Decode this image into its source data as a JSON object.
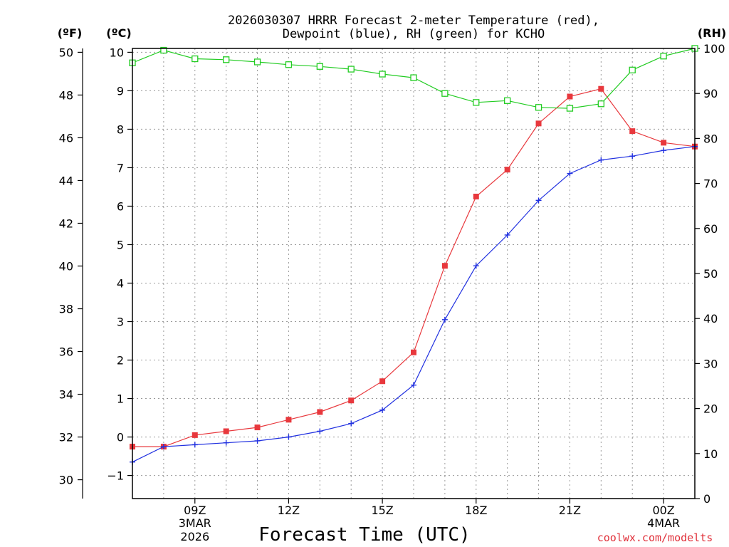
{
  "chart_data": {
    "type": "line",
    "title_line1": "2026030307 HRRR Forecast 2-meter Temperature (red),",
    "title_line2": "Dewpoint (blue), RH (green) for KCHO",
    "xlabel": "Forecast Time (UTC)",
    "credit": "coolwx.com/modelts",
    "unit_f": "(ºF)",
    "unit_c": "(ºC)",
    "unit_rh": "(RH)",
    "x_hours": [
      7,
      8,
      9,
      10,
      11,
      12,
      13,
      14,
      15,
      16,
      17,
      18,
      19,
      20,
      21,
      22,
      23,
      24,
      25
    ],
    "x_range": [
      7,
      25
    ],
    "x_ticks": [
      {
        "hour": 9,
        "label": "09Z"
      },
      {
        "hour": 12,
        "label": "12Z"
      },
      {
        "hour": 15,
        "label": "15Z"
      },
      {
        "hour": 18,
        "label": "18Z"
      },
      {
        "hour": 21,
        "label": "21Z"
      },
      {
        "hour": 24,
        "label": "00Z"
      }
    ],
    "date_labels": [
      {
        "hour": 9,
        "line1": "3MAR",
        "line2": "2026"
      },
      {
        "hour": 24,
        "line1": "4MAR",
        "line2": ""
      }
    ],
    "celsius_range": [
      -1.6,
      10.1
    ],
    "celsius_ticks": [
      "-1",
      "0",
      "1",
      "2",
      "3",
      "4",
      "5",
      "6",
      "7",
      "8",
      "9",
      "10"
    ],
    "fahrenheit_ticks": [
      "30",
      "32",
      "34",
      "36",
      "38",
      "40",
      "42",
      "44",
      "46",
      "48",
      "50"
    ],
    "rh_range": [
      0,
      100
    ],
    "rh_ticks": [
      "0",
      "10",
      "20",
      "30",
      "40",
      "50",
      "60",
      "70",
      "80",
      "90",
      "100"
    ],
    "series": [
      {
        "name": "Temperature",
        "units": "C",
        "color": "#e8383d",
        "marker": "filled-square",
        "values": [
          -0.25,
          -0.25,
          0.05,
          0.15,
          0.25,
          0.45,
          0.65,
          0.95,
          1.45,
          2.2,
          4.45,
          6.25,
          6.95,
          8.15,
          8.85,
          9.05,
          7.95,
          7.65,
          7.55
        ]
      },
      {
        "name": "Dewpoint",
        "units": "C",
        "color": "#2030e0",
        "marker": "plus",
        "values": [
          -0.65,
          -0.25,
          -0.2,
          -0.15,
          -0.1,
          0.0,
          0.15,
          0.35,
          0.7,
          1.35,
          3.05,
          4.45,
          5.25,
          6.15,
          6.85,
          7.2,
          7.3,
          7.45,
          7.55
        ]
      },
      {
        "name": "RH",
        "units": "%",
        "color": "#22cc22",
        "marker": "open-square",
        "values": [
          96.8,
          99.6,
          97.7,
          97.5,
          97.0,
          96.4,
          96.0,
          95.4,
          94.3,
          93.5,
          90.0,
          88.0,
          88.4,
          86.9,
          86.7,
          87.7,
          95.2,
          98.3,
          100.0
        ]
      }
    ]
  }
}
